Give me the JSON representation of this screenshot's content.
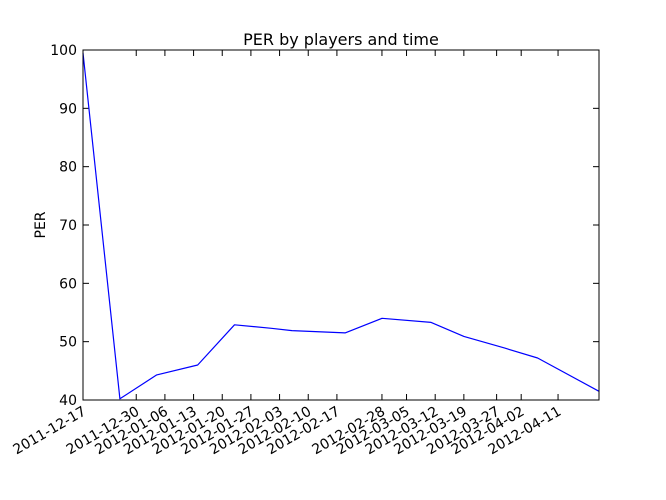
{
  "chart_data": {
    "type": "line",
    "title": "PER by players and time",
    "xlabel": "",
    "ylabel": "PER",
    "ylim": [
      40,
      100
    ],
    "yticks": [
      40,
      50,
      60,
      70,
      80,
      90,
      100
    ],
    "xlim": [
      "2011-12-17",
      "2012-04-21"
    ],
    "xtick_labels": [
      "2011-12-17",
      "2011-12-30",
      "2012-01-06",
      "2012-01-13",
      "2012-01-20",
      "2012-01-27",
      "2012-02-03",
      "2012-02-10",
      "2012-02-17",
      "2012-02-28",
      "2012-03-05",
      "2012-03-12",
      "2012-03-19",
      "2012-03-27",
      "2012-04-02",
      "2012-04-11"
    ],
    "grid": false,
    "line_color": "#0000ff",
    "series": [
      {
        "x": [
          "2011-12-17",
          "2011-12-26",
          "2012-01-04",
          "2012-01-14",
          "2012-01-23",
          "2012-02-01",
          "2012-02-06",
          "2012-02-19",
          "2012-02-28",
          "2012-03-11",
          "2012-03-19",
          "2012-03-29",
          "2012-04-06",
          "2012-04-21"
        ],
        "y": [
          99.5,
          40.2,
          44.3,
          46.0,
          52.9,
          52.3,
          51.9,
          51.5,
          54.0,
          53.3,
          50.9,
          48.9,
          47.2,
          41.5
        ]
      }
    ]
  }
}
